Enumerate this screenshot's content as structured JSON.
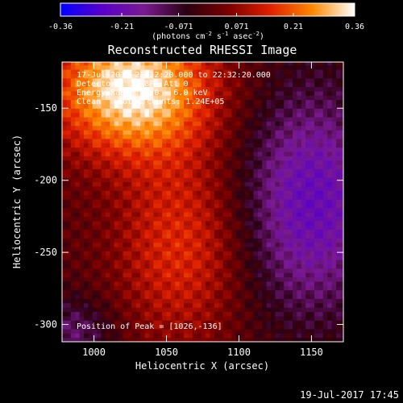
{
  "chart_data": {
    "type": "heatmap",
    "title": "Reconstructed RHESSI Image",
    "xlabel": "Heliocentric X (arcsec)",
    "ylabel": "Heliocentric Y (arcsec)",
    "xlim": [
      978,
      1172
    ],
    "ylim": [
      -312,
      -118
    ],
    "x_ticks": [
      1000,
      1050,
      1100,
      1150
    ],
    "y_ticks": [
      -150,
      -200,
      -250,
      -300
    ],
    "colorbar": {
      "range": [
        -0.36,
        0.36
      ],
      "ticks": [
        -0.36,
        -0.21,
        -0.071,
        0.071,
        0.21,
        0.36
      ],
      "tick_labels": [
        "-0.36",
        "-0.21",
        "-0.071",
        "0.071",
        "0.21",
        "0.36"
      ],
      "unit_label": "(photons cm-2 s-1 asec-2)",
      "colors": [
        "#0000ff",
        "#5a00c8",
        "#7a1a90",
        "#2a0010",
        "#7a0000",
        "#e02000",
        "#ff8800",
        "#ffffff"
      ]
    },
    "annotations": {
      "time_range": "17-Jul-2017 22:22:20.000 to 22:32:20.000",
      "detectors": "Detectors: 3F 8F, Att 0",
      "energy_range": "Energy Range: 3.0 - 6.0 keV",
      "method": "Clean",
      "total_counts": "Total counts: 1.24E+05",
      "peak": "Position of Peak = [1026,-136]"
    },
    "peak_position": [
      1026,
      -136
    ]
  },
  "footer": {
    "timestamp": "19-Jul-2017 17:45"
  }
}
